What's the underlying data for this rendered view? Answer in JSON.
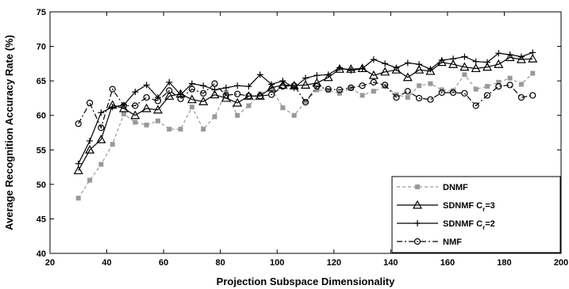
{
  "chart_data": {
    "type": "line",
    "xlabel": "Projection Subspace Dimensionality",
    "ylabel": "Average Recognition Accuracy Rate (%)",
    "xlim": [
      20,
      200
    ],
    "ylim": [
      40,
      75
    ],
    "x_ticks": [
      "20",
      "40",
      "60",
      "80",
      "100",
      "120",
      "140",
      "160",
      "180",
      "200"
    ],
    "y_ticks": [
      "40",
      "45",
      "50",
      "55",
      "60",
      "65",
      "70",
      "75"
    ],
    "grid": false,
    "legend_position": "bottom-right",
    "x": [
      30,
      34,
      38,
      42,
      46,
      50,
      54,
      58,
      62,
      66,
      70,
      74,
      78,
      82,
      86,
      90,
      94,
      98,
      102,
      106,
      110,
      114,
      118,
      122,
      126,
      130,
      134,
      138,
      142,
      146,
      150,
      154,
      158,
      162,
      166,
      170,
      174,
      178,
      182,
      186,
      190
    ],
    "series": [
      {
        "name": "DNMF",
        "legend_label": "DNMF",
        "legend_subscript": "",
        "legend_suffix": "",
        "color": "#999999",
        "marker": "square",
        "line_style": "dashed",
        "values": [
          48.0,
          50.6,
          52.9,
          55.8,
          60.2,
          59.0,
          58.6,
          59.2,
          58.0,
          58.0,
          61.2,
          58.0,
          59.8,
          63.3,
          60.0,
          61.4,
          63.1,
          63.9,
          61.1,
          60.0,
          62.0,
          63.7,
          63.6,
          63.2,
          63.9,
          62.9,
          63.5,
          64.2,
          63.0,
          62.6,
          64.3,
          64.6,
          63.7,
          63.6,
          65.9,
          63.8,
          64.2,
          64.8,
          65.4,
          64.5,
          66.1
        ]
      },
      {
        "name": "SDNMF Cr=3",
        "legend_label": "SDNMF C",
        "legend_subscript": "r",
        "legend_suffix": "=3",
        "color": "#000000",
        "marker": "triangle",
        "line_style": "solid",
        "values": [
          52.0,
          55.0,
          56.5,
          61.5,
          61.0,
          60.0,
          61.0,
          60.8,
          62.8,
          63.1,
          62.3,
          62.0,
          63.0,
          62.5,
          61.8,
          62.8,
          62.8,
          64.0,
          64.4,
          64.3,
          64.4,
          64.7,
          65.5,
          66.7,
          66.7,
          66.8,
          65.8,
          66.3,
          66.6,
          65.5,
          66.6,
          66.4,
          67.7,
          67.4,
          67.0,
          66.8,
          67.0,
          67.4,
          68.4,
          68.1,
          68.2
        ]
      },
      {
        "name": "SDNMF Cr=2",
        "legend_label": "SDNMF C",
        "legend_subscript": "r",
        "legend_suffix": "=2",
        "color": "#000000",
        "marker": "plus",
        "line_style": "solid",
        "values": [
          53.0,
          56.3,
          60.4,
          61.2,
          61.5,
          63.4,
          64.4,
          62.6,
          64.8,
          63.0,
          64.6,
          64.3,
          63.7,
          64.0,
          64.3,
          64.2,
          65.9,
          64.5,
          65.0,
          64.0,
          65.4,
          65.8,
          65.9,
          66.9,
          66.5,
          66.8,
          68.1,
          67.5,
          66.9,
          67.6,
          67.4,
          66.7,
          68.0,
          68.2,
          68.5,
          67.8,
          67.7,
          69.0,
          68.8,
          68.5,
          69.1
        ]
      },
      {
        "name": "NMF",
        "legend_label": "NMF",
        "legend_subscript": "",
        "legend_suffix": "",
        "color": "#000000",
        "marker": "circle",
        "line_style": "dashdot",
        "values": [
          58.8,
          61.8,
          58.2,
          63.8,
          61.4,
          61.4,
          62.6,
          62.1,
          63.6,
          62.4,
          63.8,
          63.2,
          64.6,
          62.9,
          63.1,
          62.8,
          62.8,
          63.0,
          64.2,
          64.3,
          61.9,
          64.2,
          63.8,
          63.7,
          64.0,
          64.3,
          64.8,
          64.4,
          62.6,
          63.5,
          62.5,
          62.3,
          63.3,
          63.3,
          63.2,
          61.4,
          62.9,
          64.2,
          64.4,
          62.6,
          62.9
        ]
      }
    ]
  }
}
